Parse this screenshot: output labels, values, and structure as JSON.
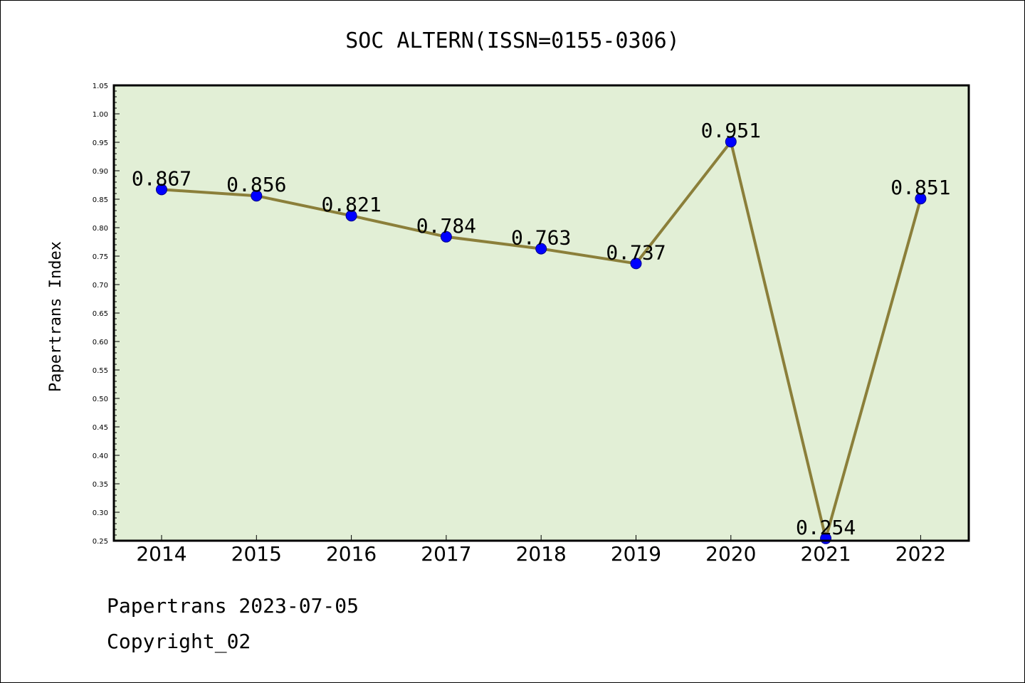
{
  "chart_data": {
    "type": "line",
    "title": "SOC ALTERN(ISSN=0155-0306)",
    "xlabel": "",
    "ylabel": "Papertrans Index",
    "categories": [
      "2014",
      "2015",
      "2016",
      "2017",
      "2018",
      "2019",
      "2020",
      "2021",
      "2022"
    ],
    "series": [
      {
        "values": [
          0.867,
          0.856,
          0.821,
          0.784,
          0.763,
          0.737,
          0.951,
          0.254,
          0.851
        ]
      }
    ],
    "data_labels": [
      "0.867",
      "0.856",
      "0.821",
      "0.784",
      "0.763",
      "0.737",
      "0.951",
      "0.254",
      "0.851"
    ],
    "ylim": [
      0.25,
      1.05
    ],
    "yticks": [
      "0.25",
      "0.30",
      "0.35",
      "0.40",
      "0.45",
      "0.50",
      "0.55",
      "0.60",
      "0.65",
      "0.70",
      "0.75",
      "0.80",
      "0.85",
      "0.90",
      "0.95",
      "1.00",
      "1.05"
    ],
    "grid": false,
    "colors": {
      "plot_bg": "#e2efd6",
      "line": "#8b7f3a",
      "marker": "#0000ff"
    }
  },
  "footer": {
    "line1": "Papertrans 2023-07-05",
    "line2": "Copyright_02"
  }
}
